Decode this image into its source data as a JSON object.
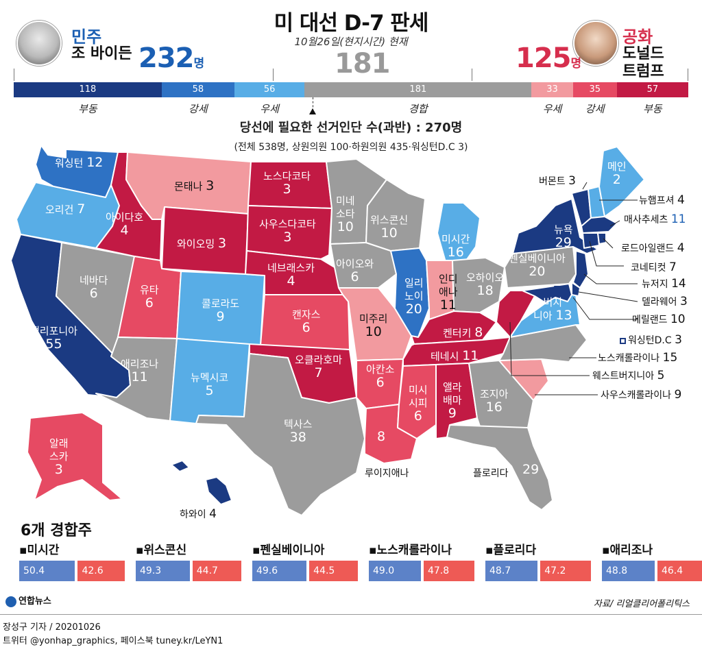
{
  "header": {
    "title": "미 대선 D-7 판세",
    "subtitle": "10월26일(현지시간) 현재",
    "dem": {
      "party": "민주",
      "candidate": "조 바이든",
      "total": "232",
      "unit": "명",
      "color": "#1b5fb3"
    },
    "rep": {
      "party": "공화",
      "candidate_line1": "도널드",
      "candidate_line2": "트럼프",
      "total": "125",
      "unit": "명",
      "color": "#d62e4d"
    },
    "toss": {
      "total": "181"
    }
  },
  "threshold": {
    "text": "당선에 필요한 선거인단 수(과반) : 270명",
    "note": "(전체 538명, 상원의원 100·하원의원 435·워싱턴D.C 3)"
  },
  "chart_data": [
    {
      "type": "bar",
      "categories": [
        "부동",
        "강세",
        "우세",
        "경합",
        "우세",
        "강세",
        "부동"
      ],
      "values": [
        118,
        58,
        56,
        181,
        33,
        35,
        57
      ],
      "colors": [
        "#1b3a82",
        "#2e72c4",
        "#58ade6",
        "#9c9c9c",
        "#f29a9f",
        "#e64a63",
        "#c21a44"
      ]
    },
    {
      "type": "bar",
      "title": "6개 경합주",
      "categories": [
        "미시간",
        "위스콘신",
        "펜실베이니아",
        "노스캐롤라이나",
        "플로리다",
        "애리조나"
      ],
      "series": [
        {
          "values": [
            50.4,
            49.3,
            49.6,
            49.0,
            48.7,
            48.8
          ]
        },
        {
          "values": [
            42.6,
            44.7,
            44.5,
            47.8,
            47.2,
            46.4
          ]
        }
      ],
      "colors": [
        "#5c82c8",
        "#ee5a55"
      ]
    }
  ],
  "map": {
    "states": [
      {
        "key": "wa",
        "name": "워싱턴",
        "ev": "12",
        "lean": "d_likely"
      },
      {
        "key": "or",
        "name": "오리건",
        "ev": "7",
        "lean": "d_lean"
      },
      {
        "key": "ca",
        "name": "캘리포니아",
        "ev": "55",
        "lean": "d_solid"
      },
      {
        "key": "nv",
        "name": "네바다",
        "ev": "6",
        "lean": "toss"
      },
      {
        "key": "id",
        "name": "아이다호",
        "ev": "4",
        "lean": "r_solid"
      },
      {
        "key": "mt",
        "name": "몬태나",
        "ev": "3",
        "lean": "r_lean"
      },
      {
        "key": "wy",
        "name": "와이오밍",
        "ev": "3",
        "lean": "r_solid"
      },
      {
        "key": "ut",
        "name": "유타",
        "ev": "6",
        "lean": "r_likely"
      },
      {
        "key": "az",
        "name": "애리조나",
        "ev": "11",
        "lean": "toss"
      },
      {
        "key": "co",
        "name": "콜로라도",
        "ev": "9",
        "lean": "d_lean"
      },
      {
        "key": "nm",
        "name": "뉴멕시코",
        "ev": "5",
        "lean": "d_lean"
      },
      {
        "key": "nd",
        "name": "노스다코타",
        "ev": "3",
        "lean": "r_solid"
      },
      {
        "key": "sd",
        "name": "사우스다코타",
        "ev": "3",
        "lean": "r_solid"
      },
      {
        "key": "ne",
        "name": "네브래스카",
        "ev": "4",
        "lean": "r_solid"
      },
      {
        "key": "ks",
        "name": "캔자스",
        "ev": "6",
        "lean": "r_likely"
      },
      {
        "key": "ok",
        "name": "오클라호마",
        "ev": "7",
        "lean": "r_solid"
      },
      {
        "key": "tx",
        "name": "텍사스",
        "ev": "38",
        "lean": "toss"
      },
      {
        "key": "mn",
        "name": "미네소타",
        "ev": "10",
        "lean": "toss"
      },
      {
        "key": "ia",
        "name": "아이오와",
        "ev": "6",
        "lean": "toss"
      },
      {
        "key": "mo",
        "name": "미주리",
        "ev": "10",
        "lean": "r_lean"
      },
      {
        "key": "ar",
        "name": "아칸소",
        "ev": "6",
        "lean": "r_likely"
      },
      {
        "key": "la",
        "name": "루이지애나",
        "ev": "8",
        "lean": "r_likely"
      },
      {
        "key": "wi",
        "name": "위스콘신",
        "ev": "10",
        "lean": "toss"
      },
      {
        "key": "il",
        "name": "일리노이",
        "ev": "20",
        "lean": "d_likely"
      },
      {
        "key": "mi",
        "name": "미시간",
        "ev": "16",
        "lean": "d_lean"
      },
      {
        "key": "in",
        "name": "인디애나",
        "ev": "11",
        "lean": "r_lean"
      },
      {
        "key": "oh",
        "name": "오하이오",
        "ev": "18",
        "lean": "toss"
      },
      {
        "key": "ky",
        "name": "켄터키",
        "ev": "8",
        "lean": "r_solid"
      },
      {
        "key": "tn",
        "name": "테네시",
        "ev": "11",
        "lean": "r_solid"
      },
      {
        "key": "ms",
        "name": "미시시피",
        "ev": "6",
        "lean": "r_likely"
      },
      {
        "key": "al",
        "name": "앨라배마",
        "ev": "9",
        "lean": "r_solid"
      },
      {
        "key": "ga",
        "name": "조지아",
        "ev": "16",
        "lean": "toss"
      },
      {
        "key": "fl",
        "name": "플로리다",
        "ev": "29",
        "lean": "toss"
      },
      {
        "key": "sc",
        "name": "사우스캐롤라이나",
        "ev": "9",
        "lean": "r_lean"
      },
      {
        "key": "nc",
        "name": "노스캐롤라이나",
        "ev": "15",
        "lean": "toss"
      },
      {
        "key": "va",
        "name": "버지니아",
        "ev": "13",
        "lean": "d_lean"
      },
      {
        "key": "wv",
        "name": "웨스트버지니아",
        "ev": "5",
        "lean": "r_solid"
      },
      {
        "key": "pa",
        "name": "펜실베이니아",
        "ev": "20",
        "lean": "toss"
      },
      {
        "key": "ny",
        "name": "뉴욕",
        "ev": "29",
        "lean": "d_solid"
      },
      {
        "key": "vt",
        "name": "버몬트",
        "ev": "3",
        "lean": "d_solid"
      },
      {
        "key": "nh",
        "name": "뉴햄프셔",
        "ev": "4",
        "lean": "d_lean"
      },
      {
        "key": "me",
        "name": "메인",
        "ev": "2",
        "lean": "d_lean"
      },
      {
        "key": "ma",
        "name": "매사추세츠",
        "ev": "11",
        "lean": "d_solid"
      },
      {
        "key": "ri",
        "name": "로드아일랜드",
        "ev": "4",
        "lean": "d_solid"
      },
      {
        "key": "ct",
        "name": "코네티컷",
        "ev": "7",
        "lean": "d_solid"
      },
      {
        "key": "nj",
        "name": "뉴저지",
        "ev": "14",
        "lean": "d_solid"
      },
      {
        "key": "de",
        "name": "델라웨어",
        "ev": "3",
        "lean": "d_solid"
      },
      {
        "key": "md",
        "name": "메릴랜드",
        "ev": "10",
        "lean": "d_solid"
      },
      {
        "key": "dc",
        "name": "워싱턴D.C",
        "ev": "3",
        "lean": "d_solid"
      },
      {
        "key": "ak",
        "name": "알래스카",
        "ev": "3",
        "lean": "r_likely"
      },
      {
        "key": "hi",
        "name": "하와이",
        "ev": "4",
        "lean": "d_solid"
      }
    ],
    "lean_colors": {
      "d_solid": "#1b3a82",
      "d_likely": "#2e72c4",
      "d_lean": "#58ade6",
      "toss": "#9c9c9c",
      "r_lean": "#f29a9f",
      "r_likely": "#e64a63",
      "r_solid": "#c21a44"
    }
  },
  "battleground": {
    "title": "6개 경합주"
  },
  "footer": {
    "logo": "연합뉴스",
    "source": "자료/ 리얼클리어폴리틱스",
    "byline": "장성구 기자 / 20201026",
    "social": "트위터 @yonhap_graphics, 페이스북 tuney.kr/LeYN1"
  }
}
